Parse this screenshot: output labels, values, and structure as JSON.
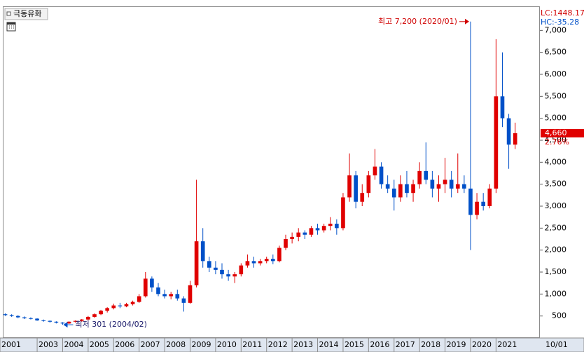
{
  "chart_data": {
    "type": "candlestick",
    "title": "극동유화",
    "lc_label": "LC:1448.17",
    "hc_label": "HC:-35.28",
    "high_annotation": "최고 7,200 (2020/01)",
    "low_annotation": "최저 301 (2004/02)",
    "current_price": {
      "value": 4660,
      "label": "4,660"
    },
    "change_label": "2.76%",
    "date_label": "10/01",
    "x_start_label": "2001",
    "up_color": "#e00000",
    "down_color": "#0050c8",
    "xlim": [
      2001.68,
      2022.72
    ],
    "ylim": [
      0,
      7500
    ],
    "xticks": [
      2003,
      2004,
      2005,
      2006,
      2007,
      2008,
      2009,
      2010,
      2011,
      2012,
      2013,
      2014,
      2015,
      2016,
      2017,
      2018,
      2019,
      2020,
      2021
    ],
    "yticks": [
      500,
      {
        "value": 1000,
        "label": "1,000"
      },
      {
        "value": 1500,
        "label": "1,500"
      },
      {
        "value": 2000,
        "label": "2,000"
      },
      {
        "value": 2500,
        "label": "2,500"
      },
      {
        "value": 3000,
        "label": "3,000"
      },
      {
        "value": 3500,
        "label": "3,500"
      },
      {
        "value": 4000,
        "label": "4,000"
      },
      {
        "value": 4500,
        "label": "4,500"
      },
      {
        "value": 5000,
        "label": "5,000"
      },
      {
        "value": 5500,
        "label": "5,500"
      },
      {
        "value": 6000,
        "label": "6,000"
      },
      {
        "value": 6500,
        "label": "6,500"
      },
      {
        "value": 7000,
        "label": "7,000"
      }
    ],
    "x": [
      2001.75,
      2002,
      2002.25,
      2002.5,
      2002.75,
      2003,
      2003.25,
      2003.5,
      2003.75,
      2004,
      2004.25,
      2004.5,
      2004.75,
      2005,
      2005.25,
      2005.5,
      2005.75,
      2006,
      2006.25,
      2006.5,
      2006.75,
      2007,
      2007.25,
      2007.5,
      2007.75,
      2008,
      2008.25,
      2008.5,
      2008.75,
      2009,
      2009.25,
      2009.5,
      2009.75,
      2010,
      2010.25,
      2010.5,
      2010.75,
      2011,
      2011.25,
      2011.5,
      2011.75,
      2012,
      2012.25,
      2012.5,
      2012.75,
      2013,
      2013.25,
      2013.5,
      2013.75,
      2014,
      2014.25,
      2014.5,
      2014.75,
      2015,
      2015.25,
      2015.5,
      2015.75,
      2016,
      2016.25,
      2016.5,
      2016.75,
      2017,
      2017.25,
      2017.5,
      2017.75,
      2018,
      2018.25,
      2018.5,
      2018.75,
      2019,
      2019.25,
      2019.5,
      2019.75,
      2020,
      2020.25,
      2020.5,
      2020.75,
      2021,
      2021.25,
      2021.5,
      2021.75
    ],
    "ohlc": [
      [
        540,
        560,
        500,
        520
      ],
      [
        520,
        540,
        480,
        500
      ],
      [
        500,
        520,
        450,
        470
      ],
      [
        470,
        490,
        430,
        450
      ],
      [
        450,
        470,
        420,
        440
      ],
      [
        440,
        450,
        390,
        400
      ],
      [
        400,
        420,
        370,
        390
      ],
      [
        390,
        400,
        350,
        370
      ],
      [
        370,
        380,
        330,
        350
      ],
      [
        350,
        360,
        301,
        330
      ],
      [
        330,
        380,
        320,
        370
      ],
      [
        370,
        400,
        350,
        390
      ],
      [
        390,
        430,
        370,
        420
      ],
      [
        420,
        500,
        400,
        480
      ],
      [
        480,
        560,
        460,
        540
      ],
      [
        540,
        640,
        520,
        620
      ],
      [
        620,
        700,
        580,
        680
      ],
      [
        680,
        780,
        650,
        740
      ],
      [
        740,
        800,
        680,
        720
      ],
      [
        720,
        800,
        700,
        770
      ],
      [
        770,
        850,
        740,
        820
      ],
      [
        820,
        1000,
        800,
        950
      ],
      [
        950,
        1500,
        920,
        1350
      ],
      [
        1350,
        1400,
        1050,
        1150
      ],
      [
        1150,
        1250,
        950,
        1000
      ],
      [
        1000,
        1100,
        900,
        950
      ],
      [
        950,
        1050,
        880,
        1000
      ],
      [
        1000,
        1100,
        850,
        900
      ],
      [
        900,
        950,
        600,
        800
      ],
      [
        800,
        1300,
        780,
        1200
      ],
      [
        1200,
        3600,
        1150,
        2200
      ],
      [
        2200,
        2500,
        1600,
        1750
      ],
      [
        1750,
        1850,
        1500,
        1600
      ],
      [
        1600,
        1750,
        1450,
        1550
      ],
      [
        1550,
        1700,
        1350,
        1450
      ],
      [
        1450,
        1550,
        1300,
        1400
      ],
      [
        1400,
        1500,
        1250,
        1450
      ],
      [
        1450,
        1700,
        1400,
        1650
      ],
      [
        1650,
        1900,
        1600,
        1750
      ],
      [
        1750,
        1850,
        1600,
        1700
      ],
      [
        1700,
        1800,
        1650,
        1750
      ],
      [
        1750,
        1850,
        1700,
        1800
      ],
      [
        1800,
        1900,
        1680,
        1750
      ],
      [
        1750,
        2100,
        1720,
        2050
      ],
      [
        2050,
        2350,
        2000,
        2250
      ],
      [
        2250,
        2400,
        2150,
        2300
      ],
      [
        2300,
        2500,
        2200,
        2400
      ],
      [
        2400,
        2450,
        2250,
        2350
      ],
      [
        2350,
        2550,
        2300,
        2500
      ],
      [
        2500,
        2600,
        2350,
        2450
      ],
      [
        2450,
        2600,
        2400,
        2550
      ],
      [
        2550,
        2750,
        2450,
        2600
      ],
      [
        2600,
        2700,
        2350,
        2500
      ],
      [
        2500,
        3300,
        2450,
        3200
      ],
      [
        3200,
        4200,
        3100,
        3700
      ],
      [
        3700,
        3800,
        2950,
        3100
      ],
      [
        3100,
        3500,
        3000,
        3300
      ],
      [
        3300,
        3800,
        3200,
        3700
      ],
      [
        3700,
        4300,
        3600,
        3900
      ],
      [
        3900,
        4000,
        3400,
        3500
      ],
      [
        3500,
        3700,
        3300,
        3400
      ],
      [
        3400,
        3600,
        2900,
        3200
      ],
      [
        3200,
        3700,
        3100,
        3500
      ],
      [
        3500,
        3800,
        3200,
        3300
      ],
      [
        3300,
        3600,
        3100,
        3500
      ],
      [
        3500,
        4000,
        3400,
        3800
      ],
      [
        3800,
        4450,
        3500,
        3600
      ],
      [
        3600,
        3800,
        3200,
        3400
      ],
      [
        3400,
        3700,
        3100,
        3500
      ],
      [
        3500,
        4100,
        3300,
        3600
      ],
      [
        3600,
        3800,
        3200,
        3400
      ],
      [
        3400,
        4200,
        3300,
        3500
      ],
      [
        3500,
        3700,
        3300,
        3400
      ],
      [
        3400,
        7200,
        2000,
        2800
      ],
      [
        2800,
        3300,
        2700,
        3100
      ],
      [
        3100,
        3300,
        2900,
        3000
      ],
      [
        3000,
        3500,
        2950,
        3400
      ],
      [
        3400,
        6800,
        3300,
        5500
      ],
      [
        5500,
        6500,
        4800,
        5000
      ],
      [
        5000,
        5100,
        3850,
        4400
      ],
      [
        4400,
        4900,
        4300,
        4660
      ]
    ],
    "high_index": 73,
    "low_index": 9
  }
}
